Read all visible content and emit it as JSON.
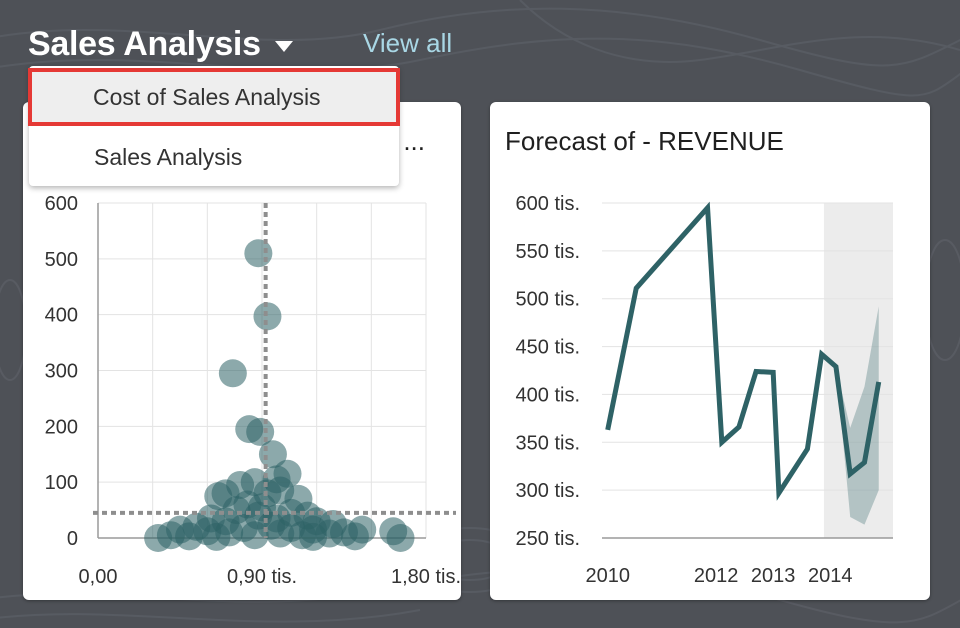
{
  "header": {
    "title": "Sales Analysis",
    "view_all": "View all"
  },
  "dropdown": {
    "items": [
      {
        "label": "Cost of Sales Analysis",
        "selected": true
      },
      {
        "label": "Sales Analysis",
        "selected": false
      }
    ]
  },
  "colors": {
    "background": "#4e5157",
    "accent_link": "#a9d7e5",
    "series": "#2e6266",
    "band": "#2e6266",
    "highlight_border": "#e53935"
  },
  "left_card": {
    "title": "..."
  },
  "right_card": {
    "title": "Forecast of - REVENUE"
  },
  "chart_data": [
    {
      "type": "scatter",
      "title": "...",
      "x_ticks": [
        "0,00",
        "0,90 tis.",
        "1,80 tis."
      ],
      "y_ticks": [
        "0",
        "100",
        "200",
        "300",
        "400",
        "500",
        "600"
      ],
      "xlim": [
        0,
        1800
      ],
      "ylim": [
        0,
        600
      ],
      "reference_lines": {
        "x": 920,
        "y": 45
      },
      "points": [
        [
          880,
          510
        ],
        [
          930,
          397
        ],
        [
          740,
          295
        ],
        [
          830,
          195
        ],
        [
          890,
          190
        ],
        [
          960,
          150
        ],
        [
          1040,
          115
        ],
        [
          980,
          105
        ],
        [
          860,
          100
        ],
        [
          780,
          95
        ],
        [
          700,
          80
        ],
        [
          660,
          75
        ],
        [
          930,
          80
        ],
        [
          1000,
          85
        ],
        [
          1100,
          70
        ],
        [
          820,
          60
        ],
        [
          900,
          55
        ],
        [
          760,
          50
        ],
        [
          1060,
          45
        ],
        [
          1150,
          40
        ],
        [
          620,
          35
        ],
        [
          700,
          30
        ],
        [
          880,
          40
        ],
        [
          980,
          35
        ],
        [
          1200,
          30
        ],
        [
          1290,
          25
        ],
        [
          540,
          20
        ],
        [
          450,
          15
        ],
        [
          600,
          12
        ],
        [
          800,
          18
        ],
        [
          950,
          22
        ],
        [
          1060,
          18
        ],
        [
          1180,
          15
        ],
        [
          1350,
          10
        ],
        [
          400,
          5
        ],
        [
          330,
          0
        ],
        [
          1270,
          8
        ],
        [
          1450,
          15
        ],
        [
          1620,
          12
        ],
        [
          1660,
          0
        ],
        [
          720,
          10
        ],
        [
          1000,
          8
        ],
        [
          860,
          5
        ],
        [
          1120,
          5
        ],
        [
          500,
          3
        ],
        [
          1410,
          3
        ],
        [
          650,
          2
        ],
        [
          1180,
          2
        ]
      ]
    },
    {
      "type": "line",
      "title": "Forecast of - REVENUE",
      "x_ticks": [
        "2010",
        "2012",
        "2013",
        "2014"
      ],
      "y_ticks": [
        "250 tis.",
        "300 tis.",
        "350 tis.",
        "400 tis.",
        "450 tis.",
        "500 tis.",
        "550 tis.",
        "600 tis."
      ],
      "ylim": [
        250,
        600
      ],
      "series": [
        {
          "values": [
            [
              2010.0,
              363
            ],
            [
              2010.5,
              511
            ],
            [
              2011.75,
              595
            ],
            [
              2012.0,
              350
            ],
            [
              2012.3,
              366
            ],
            [
              2012.6,
              424
            ],
            [
              2012.9,
              423
            ],
            [
              2013.0,
              297
            ],
            [
              2013.5,
              343
            ],
            [
              2013.75,
              442
            ],
            [
              2014.0,
              429
            ],
            [
              2014.25,
              317
            ],
            [
              2014.5,
              329
            ],
            [
              2014.75,
              413
            ]
          ]
        }
      ],
      "forecast_band": {
        "x_start": 2014.0,
        "upper": [
          [
            2014.0,
            429
          ],
          [
            2014.25,
            365
          ],
          [
            2014.5,
            408
          ],
          [
            2014.75,
            492
          ]
        ],
        "lower": [
          [
            2014.0,
            429
          ],
          [
            2014.25,
            272
          ],
          [
            2014.5,
            264
          ],
          [
            2014.75,
            300
          ]
        ]
      }
    }
  ]
}
